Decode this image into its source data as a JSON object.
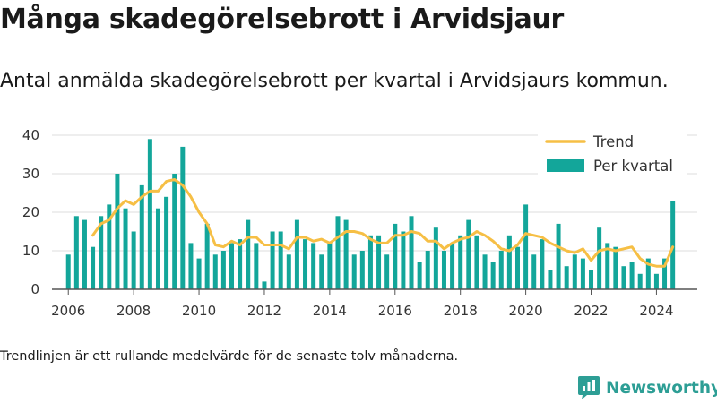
{
  "title": "Många skadegörelsebrott i Arvidsjaur",
  "subtitle": "Antal anmälda skadegörelsebrott per kvartal i Arvidsjaurs kommun.",
  "footnote": "Trendlinjen är ett rullande medelvärde för de senaste tolv månaderna.",
  "brand": {
    "name": "Newsworthy",
    "icon": "newsworthy-logo-icon"
  },
  "colors": {
    "bars": "#13a69a",
    "trend": "#f6bf45",
    "grid": "#dddddd",
    "axis": "#555555"
  },
  "chart_data": {
    "type": "bar",
    "xticks": [
      "2006",
      "2008",
      "2010",
      "2012",
      "2014",
      "2016",
      "2018",
      "2020",
      "2022",
      "2024"
    ],
    "yticks": [
      "0",
      "10",
      "20",
      "30",
      "40"
    ],
    "ylim": [
      0,
      40
    ],
    "xlim": [
      2005.5,
      2025.25
    ],
    "grid": true,
    "legend_position": "top-right",
    "legend": [
      {
        "key": "trend",
        "label": "Trend",
        "kind": "line"
      },
      {
        "key": "bars",
        "label": "Per kvartal",
        "kind": "box"
      }
    ],
    "series": [
      {
        "name": "Per kvartal",
        "type": "bar",
        "start": 2006,
        "step": 0.25,
        "values": [
          9,
          19,
          18,
          11,
          19,
          22,
          30,
          21,
          15,
          27,
          39,
          21,
          24,
          30,
          37,
          12,
          8,
          17,
          9,
          10,
          12,
          13,
          18,
          12,
          2,
          15,
          15,
          9,
          18,
          13,
          12,
          9,
          12,
          19,
          18,
          9,
          10,
          14,
          14,
          9,
          17,
          15,
          19,
          7,
          10,
          16,
          10,
          12,
          14,
          18,
          14,
          9,
          7,
          10,
          14,
          11,
          22,
          9,
          13,
          5,
          17,
          6,
          9,
          8,
          5,
          16,
          12,
          11,
          6,
          7,
          4,
          8,
          4,
          8,
          23
        ]
      },
      {
        "name": "Trend",
        "type": "line",
        "start": 2006.75,
        "step": 0.25,
        "values": [
          14,
          17,
          18,
          21,
          23,
          22,
          24,
          25.5,
          25.5,
          28,
          28.5,
          27,
          24,
          20,
          17,
          11.5,
          11,
          12.5,
          11.5,
          13.5,
          13.5,
          11.5,
          11.5,
          11.5,
          10.5,
          13.5,
          13.5,
          12.5,
          13,
          12,
          13.5,
          15,
          15,
          14.5,
          13,
          12,
          12,
          14,
          14,
          15,
          14.5,
          12.5,
          12.5,
          10.5,
          12,
          13,
          13.5,
          15,
          14,
          12.5,
          10.5,
          10,
          11.5,
          14.5,
          14,
          13.5,
          12,
          11,
          10,
          9.5,
          10.5,
          7.5,
          10,
          10.5,
          10,
          10.5,
          11,
          8,
          6.5,
          6,
          6,
          11
        ]
      }
    ]
  }
}
